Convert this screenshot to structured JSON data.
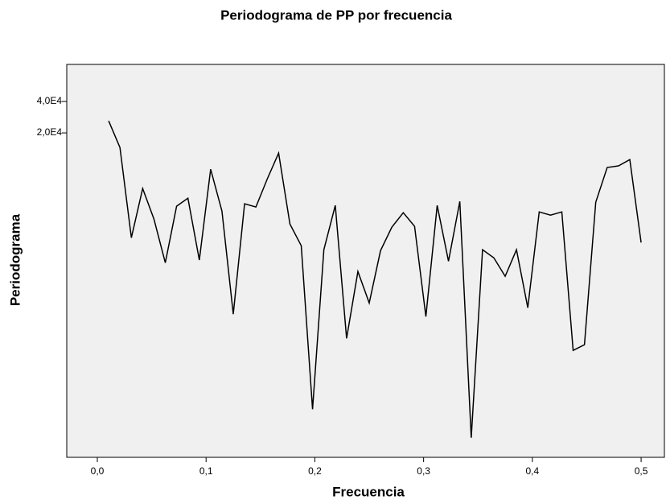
{
  "chart_data": {
    "type": "line",
    "title": "Periodograma de PP por frecuencia",
    "x_label": "Frecuencia",
    "y_label": "Periodograma",
    "x": [
      0.0104,
      0.0208,
      0.0313,
      0.0417,
      0.0521,
      0.0625,
      0.0729,
      0.0833,
      0.0938,
      0.1042,
      0.1146,
      0.125,
      0.1354,
      0.1458,
      0.1563,
      0.1667,
      0.1771,
      0.1875,
      0.1979,
      0.2083,
      0.2188,
      0.2292,
      0.2396,
      0.25,
      0.2604,
      0.2708,
      0.2813,
      0.2917,
      0.3021,
      0.3125,
      0.3229,
      0.3333,
      0.3438,
      0.3542,
      0.3646,
      0.375,
      0.3854,
      0.3958,
      0.4063,
      0.4167,
      0.4271,
      0.4375,
      0.4479,
      0.4583,
      0.4688,
      0.4792,
      0.4896,
      0.5
    ],
    "series": [
      {
        "name": "Periodograma",
        "color": "#000000",
        "values": [
          26100,
          14500,
          1980,
          5870,
          2980,
          1140,
          3970,
          4740,
          1210,
          8980,
          3560,
          367,
          4190,
          3900,
          7260,
          12800,
          2680,
          1660,
          45,
          1520,
          4040,
          215,
          940,
          470,
          1490,
          2500,
          3440,
          2550,
          348,
          4040,
          1180,
          4410,
          24,
          1520,
          1270,
          846,
          1520,
          423,
          3500,
          3260,
          3500,
          165,
          187,
          4340,
          9320,
          9660,
          11100,
          1780
        ]
      }
    ],
    "xlim": [
      -0.0281,
      0.5214
    ],
    "xticks": [
      {
        "value": 0,
        "label": "0,0"
      },
      {
        "value": 0.1,
        "label": "0,1"
      },
      {
        "value": 0.2,
        "label": "0,2"
      },
      {
        "value": 0.3,
        "label": "0,3"
      },
      {
        "value": 0.4,
        "label": "0,4"
      },
      {
        "value": 0.5,
        "label": "0,5"
      }
    ],
    "ylim": [
      15.6,
      90600
    ],
    "y_scale": "log",
    "yticks": [
      {
        "value": 40000,
        "label": "4,0E4"
      },
      {
        "value": 20000,
        "label": "2,0E4"
      }
    ],
    "background": "#f0f0f0"
  }
}
